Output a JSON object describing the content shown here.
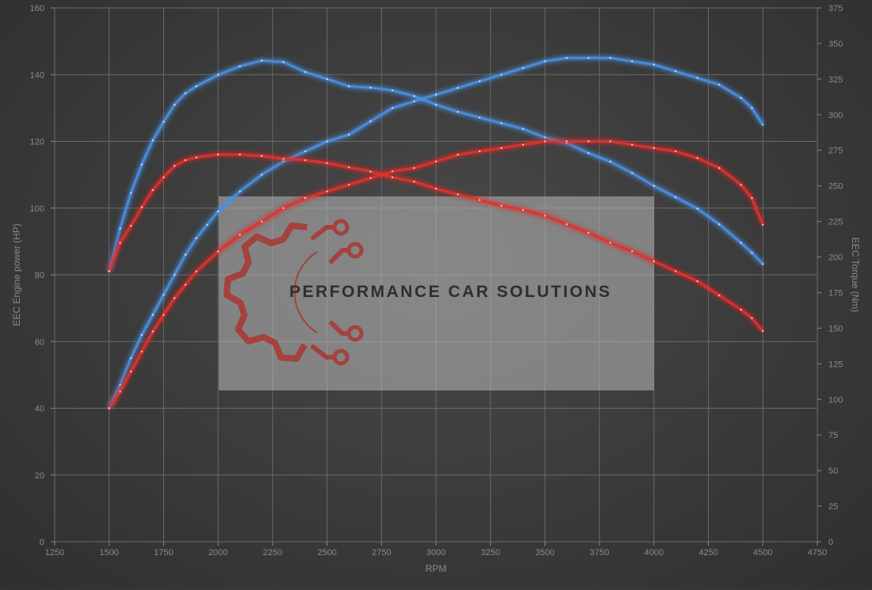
{
  "chart_data": {
    "type": "line",
    "xlabel": "RPM",
    "ylabel_left": "EEC Engine power (HP)",
    "ylabel_right": "EEC Torque (Nm)",
    "xlim": [
      1250,
      4750
    ],
    "ylim_left": [
      0,
      160
    ],
    "ylim_right": [
      0,
      375
    ],
    "x_ticks": [
      1250,
      1500,
      1750,
      2000,
      2250,
      2500,
      2750,
      3000,
      3250,
      3500,
      3750,
      4000,
      4250,
      4500,
      4750
    ],
    "y_ticks_left": [
      0,
      20,
      40,
      60,
      80,
      100,
      120,
      140,
      160
    ],
    "y_ticks_right": [
      0,
      25,
      50,
      75,
      100,
      125,
      150,
      175,
      200,
      225,
      250,
      275,
      300,
      325,
      350,
      375
    ],
    "grid": true,
    "series": [
      {
        "axis": "left",
        "color": "#4a90e2",
        "points": [
          [
            1500,
            40
          ],
          [
            1550,
            47
          ],
          [
            1600,
            55
          ],
          [
            1650,
            62
          ],
          [
            1700,
            68
          ],
          [
            1750,
            74
          ],
          [
            1800,
            80
          ],
          [
            1850,
            86
          ],
          [
            1900,
            91
          ],
          [
            1950,
            95
          ],
          [
            2000,
            99
          ],
          [
            2100,
            105
          ],
          [
            2200,
            110
          ],
          [
            2300,
            114
          ],
          [
            2400,
            117
          ],
          [
            2500,
            120
          ],
          [
            2600,
            122
          ],
          [
            2700,
            126
          ],
          [
            2800,
            130
          ],
          [
            2900,
            132
          ],
          [
            3000,
            134
          ],
          [
            3100,
            136
          ],
          [
            3200,
            138
          ],
          [
            3300,
            140
          ],
          [
            3400,
            142
          ],
          [
            3500,
            144
          ],
          [
            3600,
            145
          ],
          [
            3700,
            145
          ],
          [
            3800,
            145
          ],
          [
            3900,
            144
          ],
          [
            4000,
            143
          ],
          [
            4100,
            141
          ],
          [
            4200,
            139
          ],
          [
            4300,
            137
          ],
          [
            4400,
            133
          ],
          [
            4450,
            130
          ],
          [
            4500,
            125
          ]
        ]
      },
      {
        "axis": "right",
        "color": "#4a90e2",
        "points": [
          [
            1500,
            190
          ],
          [
            1550,
            220
          ],
          [
            1600,
            245
          ],
          [
            1650,
            265
          ],
          [
            1700,
            282
          ],
          [
            1750,
            295
          ],
          [
            1800,
            307
          ],
          [
            1850,
            315
          ],
          [
            1900,
            320
          ],
          [
            2000,
            328
          ],
          [
            2100,
            334
          ],
          [
            2200,
            338
          ],
          [
            2300,
            337
          ],
          [
            2400,
            330
          ],
          [
            2500,
            325
          ],
          [
            2600,
            320
          ],
          [
            2700,
            319
          ],
          [
            2800,
            317
          ],
          [
            2900,
            313
          ],
          [
            3000,
            307
          ],
          [
            3100,
            302
          ],
          [
            3200,
            298
          ],
          [
            3300,
            294
          ],
          [
            3400,
            290
          ],
          [
            3500,
            284
          ],
          [
            3600,
            280
          ],
          [
            3700,
            273
          ],
          [
            3800,
            267
          ],
          [
            3900,
            259
          ],
          [
            4000,
            250
          ],
          [
            4100,
            242
          ],
          [
            4200,
            234
          ],
          [
            4300,
            223
          ],
          [
            4400,
            210
          ],
          [
            4450,
            203
          ],
          [
            4500,
            195
          ]
        ]
      },
      {
        "axis": "left",
        "color": "#e0312e",
        "points": [
          [
            1500,
            40
          ],
          [
            1550,
            45
          ],
          [
            1600,
            51
          ],
          [
            1650,
            57
          ],
          [
            1700,
            63
          ],
          [
            1750,
            68
          ],
          [
            1800,
            73
          ],
          [
            1850,
            77
          ],
          [
            1900,
            81
          ],
          [
            2000,
            87
          ],
          [
            2100,
            92
          ],
          [
            2200,
            96
          ],
          [
            2300,
            100
          ],
          [
            2400,
            103
          ],
          [
            2500,
            105
          ],
          [
            2600,
            107
          ],
          [
            2700,
            109
          ],
          [
            2800,
            111
          ],
          [
            2900,
            112
          ],
          [
            3000,
            114
          ],
          [
            3100,
            116
          ],
          [
            3200,
            117
          ],
          [
            3300,
            118
          ],
          [
            3400,
            119
          ],
          [
            3500,
            120
          ],
          [
            3600,
            120
          ],
          [
            3700,
            120
          ],
          [
            3800,
            120
          ],
          [
            3900,
            119
          ],
          [
            4000,
            118
          ],
          [
            4100,
            117
          ],
          [
            4200,
            115
          ],
          [
            4300,
            112
          ],
          [
            4400,
            107
          ],
          [
            4450,
            103
          ],
          [
            4500,
            95
          ]
        ]
      },
      {
        "axis": "right",
        "color": "#e0312e",
        "points": [
          [
            1500,
            190
          ],
          [
            1550,
            210
          ],
          [
            1600,
            222
          ],
          [
            1650,
            235
          ],
          [
            1700,
            247
          ],
          [
            1750,
            256
          ],
          [
            1800,
            264
          ],
          [
            1850,
            268
          ],
          [
            1900,
            270
          ],
          [
            2000,
            272
          ],
          [
            2100,
            272
          ],
          [
            2200,
            271
          ],
          [
            2300,
            269
          ],
          [
            2400,
            268
          ],
          [
            2500,
            266
          ],
          [
            2600,
            263
          ],
          [
            2700,
            260
          ],
          [
            2800,
            256
          ],
          [
            2900,
            253
          ],
          [
            3000,
            248
          ],
          [
            3100,
            244
          ],
          [
            3200,
            240
          ],
          [
            3300,
            236
          ],
          [
            3400,
            233
          ],
          [
            3500,
            229
          ],
          [
            3600,
            223
          ],
          [
            3700,
            217
          ],
          [
            3800,
            210
          ],
          [
            3900,
            204
          ],
          [
            4000,
            197
          ],
          [
            4100,
            190
          ],
          [
            4200,
            183
          ],
          [
            4300,
            173
          ],
          [
            4400,
            163
          ],
          [
            4450,
            157
          ],
          [
            4500,
            148
          ]
        ]
      }
    ]
  },
  "watermark": {
    "text": "PERFORMANCE CAR SOLUTIONS",
    "logo_color": "#a4423d"
  }
}
